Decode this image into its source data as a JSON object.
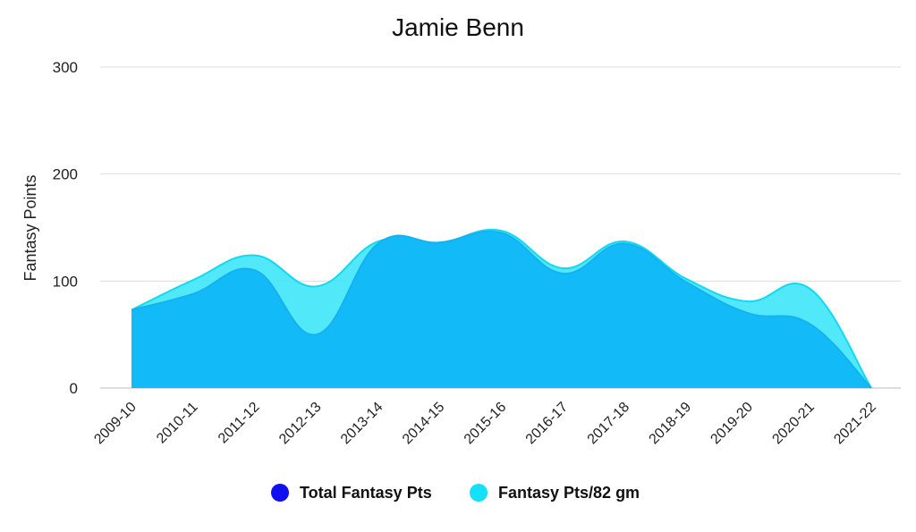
{
  "chart_data": {
    "type": "area",
    "title": "Jamie Benn",
    "xlabel": "",
    "ylabel": "Fantasy Points",
    "ylim": [
      0,
      300
    ],
    "yticks": [
      0,
      100,
      200,
      300
    ],
    "grid": true,
    "legend_position": "bottom",
    "categories": [
      "2009-10",
      "2010-11",
      "2011-12",
      "2012-13",
      "2013-14",
      "2014-15",
      "2015-16",
      "2016-17",
      "2017-18",
      "2018-19",
      "2019-20",
      "2020-21",
      "2021-22"
    ],
    "series": [
      {
        "name": "Total Fantasy Pts",
        "color": "#1010ee",
        "fill": "#12baf8",
        "values": [
          73,
          88,
          110,
          50,
          135,
          136,
          145,
          107,
          135,
          99,
          70,
          60,
          0
        ]
      },
      {
        "name": "Fantasy Pts/82 gm",
        "color": "#14e0f8",
        "fill": "#3ee6f8",
        "values": [
          73,
          101,
          124,
          95,
          137,
          136,
          147,
          112,
          137,
          102,
          81,
          93,
          0
        ]
      }
    ]
  }
}
